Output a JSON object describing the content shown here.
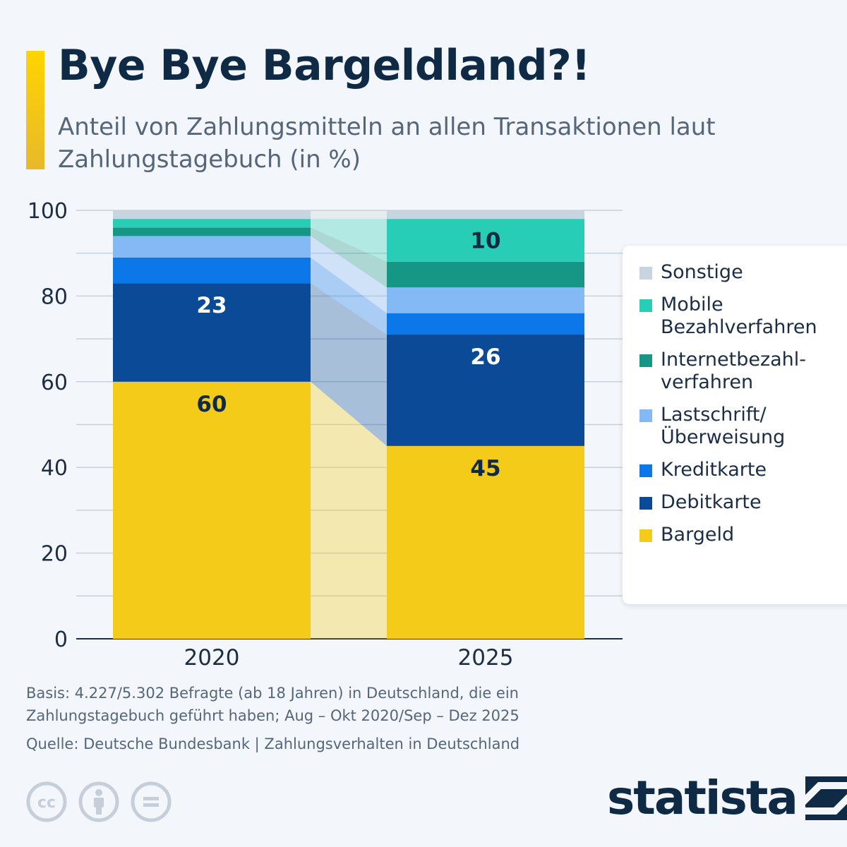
{
  "title": "Bye Bye Bargeldland?!",
  "subtitle": "Anteil von Zahlungsmitteln an allen Transaktionen laut Zahlungstagebuch (in %)",
  "chart_data": {
    "type": "bar",
    "stacked": true,
    "categories": [
      "2020",
      "2025"
    ],
    "ylim": [
      0,
      100
    ],
    "yticks": [
      0,
      20,
      40,
      60,
      80,
      100
    ],
    "grid": true,
    "legend_position": "right",
    "series": [
      {
        "name": "Bargeld",
        "color": "#f5cb1a",
        "values": [
          60,
          45
        ],
        "labels": [
          "60",
          "45"
        ],
        "label_color": "#0f2a45"
      },
      {
        "name": "Debitkarte",
        "color": "#0a4a97",
        "values": [
          23,
          26
        ],
        "labels": [
          "23",
          "26"
        ],
        "label_color": "#ffffff"
      },
      {
        "name": "Kreditkarte",
        "color": "#0b77e8",
        "values": [
          6,
          5
        ],
        "labels": [
          "",
          ""
        ],
        "label_color": "#ffffff"
      },
      {
        "name": "Lastschrift/ Überweisung",
        "color": "#83b9f4",
        "values": [
          5,
          6
        ],
        "labels": [
          "",
          ""
        ],
        "label_color": "#0f2a45"
      },
      {
        "name": "Internetbezahl- verfahren",
        "color": "#169684",
        "values": [
          2,
          6
        ],
        "labels": [
          "",
          ""
        ],
        "label_color": "#ffffff"
      },
      {
        "name": "Mobile Bezahlverfahren",
        "color": "#27cdb5",
        "values": [
          2,
          10
        ],
        "labels": [
          "",
          "10"
        ],
        "label_color": "#0f2a45"
      },
      {
        "name": "Sonstige",
        "color": "#c9d5de",
        "values": [
          2,
          2
        ],
        "labels": [
          "",
          ""
        ],
        "label_color": "#0f2a45"
      }
    ]
  },
  "legend": [
    {
      "label": "Sonstige",
      "color": "#c9d5de"
    },
    {
      "label": "Mobile Bezahlverfahren",
      "color": "#27cdb5"
    },
    {
      "label": "Internetbezahl- verfahren",
      "color": "#169684"
    },
    {
      "label": "Lastschrift/ Überweisung",
      "color": "#83b9f4"
    },
    {
      "label": "Kreditkarte",
      "color": "#0b77e8"
    },
    {
      "label": "Debitkarte",
      "color": "#0a4a97"
    },
    {
      "label": "Bargeld",
      "color": "#f5cb1a"
    }
  ],
  "footnote": {
    "basis": "Basis: 4.227/5.302 Befragte (ab 18 Jahren) in Deutschland, die ein Zahlungstagebuch geführt haben; Aug – Okt 2020/Sep – Dez 2025",
    "source": "Quelle: Deutsche Bundesbank | Zahlungsverhalten in Deutschland"
  },
  "brand": {
    "name": "statista"
  },
  "icons": [
    "cc-icon",
    "attribution-icon",
    "no-derivatives-icon",
    "statista-logo-icon"
  ]
}
